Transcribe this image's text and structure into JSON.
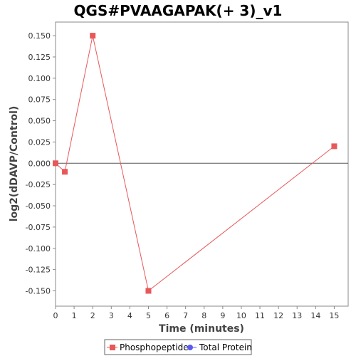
{
  "chart_data": {
    "type": "line",
    "title": "QGS#PVAAGAPAK(+ 3)_v1",
    "xlabel": "Time (minutes)",
    "ylabel": "log2(dDAVP/Control)",
    "xlim": [
      0,
      15.75
    ],
    "ylim": [
      -0.168,
      0.166
    ],
    "x_ticks": [
      0,
      1,
      2,
      3,
      4,
      5,
      6,
      7,
      8,
      9,
      10,
      11,
      12,
      13,
      14,
      15
    ],
    "y_ticks": [
      0.15,
      0.125,
      0.1,
      0.075,
      0.05,
      0.025,
      0.0,
      -0.025,
      -0.05,
      -0.075,
      -0.1,
      -0.125,
      -0.15
    ],
    "y_tick_labels": [
      "0.150",
      "0.125",
      "0.100",
      "0.075",
      "0.050",
      "0.025",
      "0.000",
      "-0.025",
      "-0.050",
      "-0.075",
      "-0.100",
      "-0.125",
      "-0.150"
    ],
    "reference_line_y": 0,
    "grid": false,
    "legend_position": "bottom",
    "series": [
      {
        "name": "Phosphopeptide",
        "color": "#e8585a",
        "marker": "square",
        "x": [
          0,
          0.5,
          2,
          5,
          15
        ],
        "y": [
          0.0,
          -0.01,
          0.15,
          -0.15,
          0.02
        ]
      },
      {
        "name": "Total Protein",
        "color": "#5b5bf0",
        "marker": "circle",
        "x": [],
        "y": []
      }
    ]
  }
}
